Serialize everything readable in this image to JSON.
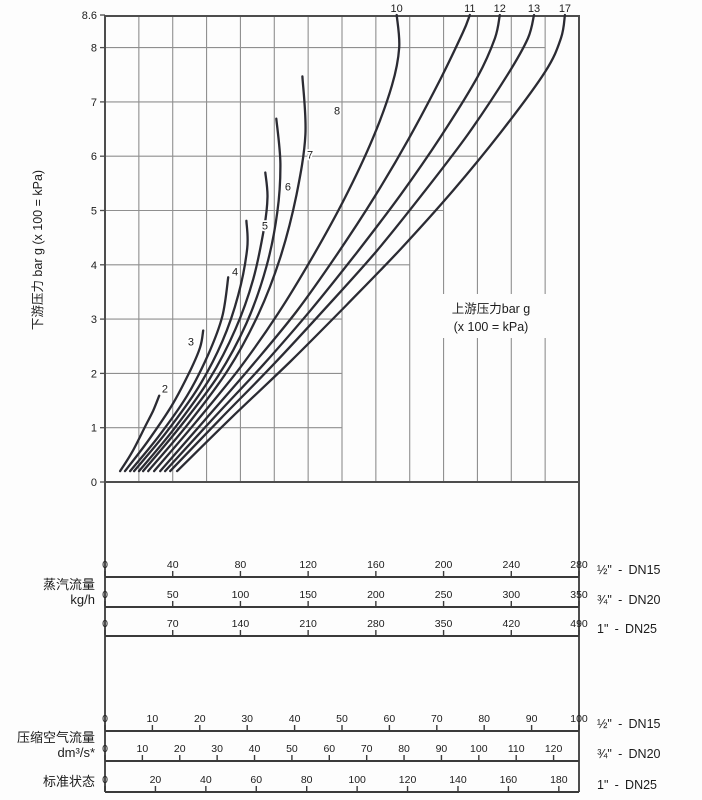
{
  "figure": {
    "bg": "#fdfdfd",
    "axis_color": "#4d4d4d",
    "grid_color": "#8f8f8f",
    "scale_line_color": "#3a3a3a",
    "curve_color": "#2b2b33",
    "text_color": "#1c1c1c"
  },
  "chart_data": {
    "type": "line",
    "title": "",
    "x_axis": {
      "reference_scale": "steam kg/h 0-280 across full plot width",
      "range": [
        0,
        280
      ],
      "grid_step": 20
    },
    "y_axis": {
      "label": "下游压力 bar g (x 100 = kPa)",
      "range": [
        0,
        8.6
      ],
      "ticks": [
        0,
        1,
        2,
        3,
        4,
        5,
        6,
        7,
        8
      ],
      "top_tick": "8.6"
    },
    "upstream_label_line1": "上游压力bar g",
    "upstream_label_line2": "(x 100 = kPa)",
    "grid": {
      "h_levels": [
        1,
        2,
        3,
        4,
        5,
        6,
        7,
        8
      ],
      "h_end_flow": [
        140,
        140,
        140,
        180,
        200,
        220,
        240,
        260
      ]
    },
    "series": [
      {
        "name": "2",
        "points": [
          [
            8.9,
            0.2
          ],
          [
            16,
            0.55
          ],
          [
            23.7,
            1.02
          ],
          [
            28.4,
            1.31
          ],
          [
            32,
            1.59
          ]
        ],
        "label_pos": [
          35.4,
          1.72
        ]
      },
      {
        "name": "3",
        "points": [
          [
            11.8,
            0.2
          ],
          [
            25.5,
            0.76
          ],
          [
            39.7,
            1.42
          ],
          [
            50.3,
            2.05
          ],
          [
            56.2,
            2.48
          ],
          [
            58,
            2.79
          ]
        ],
        "label_pos": [
          50.8,
          2.59
        ]
      },
      {
        "name": "4",
        "points": [
          [
            14.8,
            0.2
          ],
          [
            31.4,
            0.83
          ],
          [
            48.5,
            1.59
          ],
          [
            61,
            2.35
          ],
          [
            69.3,
            3.05
          ],
          [
            72.8,
            3.77
          ]
        ],
        "label_pos": [
          76.8,
          3.88
        ]
      },
      {
        "name": "5",
        "points": [
          [
            17.2,
            0.2
          ],
          [
            36.1,
            0.91
          ],
          [
            55.1,
            1.74
          ],
          [
            69.3,
            2.59
          ],
          [
            78.7,
            3.44
          ],
          [
            84,
            4.3
          ],
          [
            83.5,
            4.81
          ]
        ],
        "label_pos": [
          94.5,
          4.72
        ]
      },
      {
        "name": "6",
        "points": [
          [
            20.1,
            0.2
          ],
          [
            40.8,
            0.98
          ],
          [
            61.6,
            1.89
          ],
          [
            77,
            2.81
          ],
          [
            87.6,
            3.74
          ],
          [
            94.1,
            4.7
          ],
          [
            96,
            5.25
          ],
          [
            94.7,
            5.7
          ]
        ],
        "label_pos": [
          108.1,
          5.44
        ]
      },
      {
        "name": "7",
        "points": [
          [
            22.5,
            0.2
          ],
          [
            44.4,
            1.02
          ],
          [
            66.9,
            1.96
          ],
          [
            83.5,
            2.92
          ],
          [
            95.3,
            3.96
          ],
          [
            101.8,
            4.97
          ],
          [
            103.6,
            5.86
          ],
          [
            101.2,
            6.69
          ]
        ],
        "label_pos": [
          121.1,
          6.03
        ]
      },
      {
        "name": "8",
        "points": [
          [
            25.5,
            0.2
          ],
          [
            49.1,
            1.07
          ],
          [
            72.8,
            2.07
          ],
          [
            90.6,
            3.09
          ],
          [
            103.6,
            4.14
          ],
          [
            113.1,
            5.29
          ],
          [
            118.4,
            6.4
          ],
          [
            116.6,
            7.47
          ]
        ],
        "label_pos": [
          137.1,
          6.84
        ]
      },
      {
        "name": "10",
        "points": [
          [
            29,
            0.2
          ],
          [
            53.9,
            1.11
          ],
          [
            79.9,
            2.11
          ],
          [
            102.4,
            3.11
          ],
          [
            122.5,
            4.14
          ],
          [
            141.5,
            5.22
          ],
          [
            158.1,
            6.32
          ],
          [
            169.5,
            7.3
          ],
          [
            173.8,
            8.0
          ],
          [
            172.3,
            8.6
          ]
        ],
        "top_label": true
      },
      {
        "name": "11",
        "points": [
          [
            32.6,
            0.2
          ],
          [
            59.2,
            1.15
          ],
          [
            87,
            2.15
          ],
          [
            113.1,
            3.14
          ],
          [
            136.8,
            4.18
          ],
          [
            159.2,
            5.25
          ],
          [
            179.4,
            6.32
          ],
          [
            198.3,
            7.43
          ],
          [
            211.3,
            8.27
          ],
          [
            215.5,
            8.6
          ]
        ],
        "top_label": true
      },
      {
        "name": "12",
        "points": [
          [
            35.5,
            0.2
          ],
          [
            63.9,
            1.17
          ],
          [
            93.5,
            2.16
          ],
          [
            121.9,
            3.18
          ],
          [
            148.6,
            4.22
          ],
          [
            174.6,
            5.29
          ],
          [
            198.3,
            6.36
          ],
          [
            220.2,
            7.47
          ],
          [
            230.3,
            8.17
          ],
          [
            233.2,
            8.6
          ]
        ],
        "top_label": true
      },
      {
        "name": "13",
        "points": [
          [
            38.5,
            0.2
          ],
          [
            68.7,
            1.18
          ],
          [
            100,
            2.18
          ],
          [
            130.8,
            3.22
          ],
          [
            160.4,
            4.25
          ],
          [
            188.2,
            5.33
          ],
          [
            214.3,
            6.4
          ],
          [
            238,
            7.51
          ],
          [
            249.8,
            8.17
          ],
          [
            253.4,
            8.6
          ]
        ],
        "top_label": true
      },
      {
        "name": "17",
        "points": [
          [
            42.6,
            0.2
          ],
          [
            75.2,
            1.2
          ],
          [
            109.5,
            2.22
          ],
          [
            142.7,
            3.26
          ],
          [
            174.6,
            4.29
          ],
          [
            205.4,
            5.36
          ],
          [
            233.8,
            6.44
          ],
          [
            259.9,
            7.55
          ],
          [
            269.3,
            8.17
          ],
          [
            271.7,
            8.6
          ]
        ],
        "top_label": true
      }
    ],
    "flow_scales": {
      "steam": {
        "label": "蒸汽流量",
        "unit": "kg/h",
        "rows": [
          {
            "size": "½\"",
            "dn": "DN15",
            "tick_labels": [
              0,
              40,
              80,
              120,
              160,
              200,
              240,
              280
            ],
            "axis_max": 280
          },
          {
            "size": "¾\"",
            "dn": "DN20",
            "tick_labels": [
              0,
              50,
              100,
              150,
              200,
              250,
              300,
              350
            ],
            "axis_max": 350
          },
          {
            "size": "1\"",
            "dn": "DN25",
            "tick_labels": [
              0,
              70,
              140,
              210,
              280,
              350,
              420,
              490
            ],
            "axis_max": 490
          }
        ]
      },
      "air": {
        "label": "压缩空气流量",
        "unit": "dm³/s*",
        "state": "标准状态",
        "rows": [
          {
            "size": "½\"",
            "dn": "DN15",
            "tick_labels": [
              0,
              10,
              20,
              30,
              40,
              50,
              60,
              70,
              80,
              90,
              100
            ],
            "axis_max": 100
          },
          {
            "size": "¾\"",
            "dn": "DN20",
            "tick_labels": [
              0,
              10,
              20,
              30,
              40,
              50,
              60,
              70,
              80,
              90,
              100,
              110,
              120
            ],
            "axis_max": 126.8
          },
          {
            "size": "1\"",
            "dn": "DN25",
            "tick_labels": [
              0,
              20,
              40,
              60,
              80,
              100,
              120,
              140,
              160,
              180
            ],
            "axis_max": 188
          }
        ]
      }
    }
  }
}
